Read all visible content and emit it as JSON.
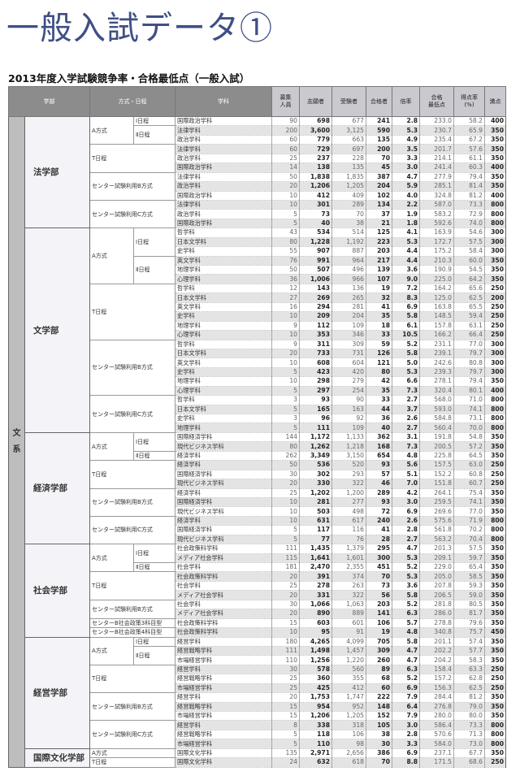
{
  "title": "一般入試データ①",
  "subtitle": "2013年度入学試験競争率・合格最低点（一般入試）",
  "headers": {
    "faculty": "学部",
    "method": "方式・日程",
    "subject": "学科",
    "quota": "募集\n人員",
    "applicants": "志願者",
    "examinees": "受験者",
    "passed": "合格者",
    "ratio": "倍率",
    "min_score": "合格\n最低点",
    "score_rate": "得点率\n(%)",
    "full_score": "満点"
  },
  "category": "文系",
  "departments": [
    {
      "name": "法学部",
      "methods": [
        {
          "method": "A方式",
          "schedules": [
            {
              "schedule": "Ⅰ日程",
              "rows": [
                [
                  "国際政治学科",
                  "90",
                  "698",
                  "677",
                  "241",
                  "2.8",
                  "233.0",
                  "58.2",
                  "400"
                ]
              ]
            },
            {
              "schedule": "Ⅱ日程",
              "rows": [
                [
                  "法律学科",
                  "200",
                  "3,600",
                  "3,125",
                  "590",
                  "5.3",
                  "230.7",
                  "65.9",
                  "350"
                ],
                [
                  "政治学科",
                  "60",
                  "779",
                  "663",
                  "135",
                  "4.9",
                  "235.4",
                  "67.2",
                  "350"
                ]
              ]
            }
          ]
        },
        {
          "method": "T日程",
          "rows": [
            [
              "法律学科",
              "60",
              "729",
              "697",
              "200",
              "3.5",
              "201.7",
              "57.6",
              "350"
            ],
            [
              "政治学科",
              "25",
              "237",
              "228",
              "70",
              "3.3",
              "214.1",
              "61.1",
              "350"
            ],
            [
              "国際政治学科",
              "14",
              "138",
              "135",
              "45",
              "3.0",
              "241.4",
              "60.3",
              "400"
            ]
          ]
        },
        {
          "method": "センター試験利用B方式",
          "rows": [
            [
              "法律学科",
              "50",
              "1,838",
              "1,835",
              "387",
              "4.7",
              "277.9",
              "79.4",
              "350"
            ],
            [
              "政治学科",
              "20",
              "1,206",
              "1,205",
              "204",
              "5.9",
              "285.1",
              "81.4",
              "350"
            ],
            [
              "国際政治学科",
              "10",
              "412",
              "409",
              "102",
              "4.0",
              "324.8",
              "81.2",
              "400"
            ]
          ]
        },
        {
          "method": "センター試験利用C方式",
          "rows": [
            [
              "法律学科",
              "10",
              "301",
              "289",
              "134",
              "2.2",
              "587.0",
              "73.3",
              "800"
            ],
            [
              "政治学科",
              "5",
              "73",
              "70",
              "37",
              "1.9",
              "583.2",
              "72.9",
              "800"
            ],
            [
              "国際政治学科",
              "5",
              "40",
              "38",
              "21",
              "1.8",
              "592.6",
              "74.0",
              "800"
            ]
          ]
        }
      ]
    },
    {
      "name": "文学部",
      "methods": [
        {
          "method": "A方式",
          "schedules": [
            {
              "schedule": "Ⅰ日程",
              "rows": [
                [
                  "哲学科",
                  "43",
                  "534",
                  "514",
                  "125",
                  "4.1",
                  "163.9",
                  "54.6",
                  "300"
                ],
                [
                  "日本文学科",
                  "80",
                  "1,228",
                  "1,192",
                  "223",
                  "5.3",
                  "172.7",
                  "57.5",
                  "300"
                ],
                [
                  "史学科",
                  "55",
                  "907",
                  "887",
                  "203",
                  "4.4",
                  "175.2",
                  "58.4",
                  "300"
                ]
              ]
            },
            {
              "schedule": "Ⅱ日程",
              "rows": [
                [
                  "英文学科",
                  "76",
                  "991",
                  "964",
                  "217",
                  "4.4",
                  "210.3",
                  "60.0",
                  "350"
                ],
                [
                  "地理学科",
                  "50",
                  "507",
                  "496",
                  "139",
                  "3.6",
                  "190.9",
                  "54.5",
                  "350"
                ],
                [
                  "心理学科",
                  "36",
                  "1,006",
                  "966",
                  "107",
                  "9.0",
                  "225.0",
                  "64.2",
                  "350"
                ]
              ]
            }
          ]
        },
        {
          "method": "T日程",
          "rows": [
            [
              "哲学科",
              "12",
              "143",
              "136",
              "19",
              "7.2",
              "164.2",
              "65.6",
              "250"
            ],
            [
              "日本文学科",
              "27",
              "269",
              "265",
              "32",
              "8.3",
              "125.0",
              "62.5",
              "200"
            ],
            [
              "英文学科",
              "16",
              "294",
              "281",
              "41",
              "6.9",
              "163.8",
              "65.5",
              "250"
            ],
            [
              "史学科",
              "10",
              "209",
              "204",
              "35",
              "5.8",
              "148.5",
              "59.4",
              "250"
            ],
            [
              "地理学科",
              "9",
              "112",
              "109",
              "18",
              "6.1",
              "157.8",
              "63.1",
              "250"
            ],
            [
              "心理学科",
              "10",
              "353",
              "346",
              "33",
              "10.5",
              "166.2",
              "66.4",
              "250"
            ]
          ]
        },
        {
          "method": "センター試験利用B方式",
          "rows": [
            [
              "哲学科",
              "9",
              "311",
              "309",
              "59",
              "5.2",
              "231.1",
              "77.0",
              "300"
            ],
            [
              "日本文学科",
              "20",
              "733",
              "731",
              "126",
              "5.8",
              "239.1",
              "79.7",
              "300"
            ],
            [
              "英文学科",
              "10",
              "608",
              "604",
              "121",
              "5.0",
              "242.6",
              "80.8",
              "300"
            ],
            [
              "史学科",
              "5",
              "423",
              "420",
              "80",
              "5.3",
              "239.3",
              "79.7",
              "300"
            ],
            [
              "地理学科",
              "10",
              "298",
              "279",
              "42",
              "6.6",
              "278.1",
              "79.4",
              "350"
            ],
            [
              "心理学科",
              "5",
              "297",
              "254",
              "35",
              "7.3",
              "320.4",
              "80.1",
              "400"
            ]
          ]
        },
        {
          "method": "センター試験利用C方式",
          "rows": [
            [
              "哲学科",
              "3",
              "93",
              "90",
              "33",
              "2.7",
              "568.0",
              "71.0",
              "800"
            ],
            [
              "日本文学科",
              "5",
              "165",
              "163",
              "44",
              "3.7",
              "593.0",
              "74.1",
              "800"
            ],
            [
              "史学科",
              "3",
              "96",
              "92",
              "36",
              "2.6",
              "584.8",
              "73.1",
              "800"
            ],
            [
              "地理学科",
              "5",
              "111",
              "109",
              "40",
              "2.7",
              "560.4",
              "70.0",
              "800"
            ]
          ]
        }
      ]
    },
    {
      "name": "経済学部",
      "methods": [
        {
          "method": "A方式",
          "schedules": [
            {
              "schedule": "Ⅰ日程",
              "rows": [
                [
                  "国際経済学科",
                  "144",
                  "1,172",
                  "1,133",
                  "362",
                  "3.1",
                  "191.8",
                  "54.8",
                  "350"
                ],
                [
                  "現代ビジネス学科",
                  "80",
                  "1,262",
                  "1,218",
                  "168",
                  "7.3",
                  "200.5",
                  "57.2",
                  "350"
                ]
              ]
            },
            {
              "schedule": "Ⅱ日程",
              "rows": [
                [
                  "経済学科",
                  "262",
                  "3,349",
                  "3,150",
                  "654",
                  "4.8",
                  "225.8",
                  "64.5",
                  "350"
                ]
              ]
            }
          ]
        },
        {
          "method": "T日程",
          "rows": [
            [
              "経済学科",
              "50",
              "536",
              "520",
              "93",
              "5.6",
              "157.5",
              "63.0",
              "250"
            ],
            [
              "国際経済学科",
              "30",
              "302",
              "293",
              "57",
              "5.1",
              "152.2",
              "60.8",
              "250"
            ],
            [
              "現代ビジネス学科",
              "20",
              "330",
              "322",
              "46",
              "7.0",
              "151.8",
              "60.7",
              "250"
            ]
          ]
        },
        {
          "method": "センター試験利用B方式",
          "rows": [
            [
              "経済学科",
              "25",
              "1,202",
              "1,200",
              "289",
              "4.2",
              "264.1",
              "75.4",
              "350"
            ],
            [
              "国際経済学科",
              "10",
              "281",
              "277",
              "93",
              "3.0",
              "259.5",
              "74.1",
              "350"
            ],
            [
              "現代ビジネス学科",
              "10",
              "503",
              "498",
              "72",
              "6.9",
              "269.6",
              "77.0",
              "350"
            ]
          ]
        },
        {
          "method": "センター試験利用C方式",
          "rows": [
            [
              "経済学科",
              "10",
              "631",
              "617",
              "240",
              "2.6",
              "575.6",
              "71.9",
              "800"
            ],
            [
              "国際経済学科",
              "5",
              "117",
              "116",
              "41",
              "2.8",
              "561.8",
              "70.2",
              "800"
            ],
            [
              "現代ビジネス学科",
              "5",
              "77",
              "76",
              "28",
              "2.7",
              "563.2",
              "70.4",
              "800"
            ]
          ]
        }
      ]
    },
    {
      "name": "社会学部",
      "methods": [
        {
          "method": "A方式",
          "schedules": [
            {
              "schedule": "Ⅰ日程",
              "rows": [
                [
                  "社会政策科学科",
                  "111",
                  "1,435",
                  "1,379",
                  "295",
                  "4.7",
                  "201.3",
                  "57.5",
                  "350"
                ],
                [
                  "メディア社会学科",
                  "115",
                  "1,641",
                  "1,601",
                  "300",
                  "5.3",
                  "209.1",
                  "59.7",
                  "350"
                ]
              ]
            },
            {
              "schedule": "Ⅱ日程",
              "rows": [
                [
                  "社会学科",
                  "181",
                  "2,470",
                  "2,355",
                  "451",
                  "5.2",
                  "229.0",
                  "65.4",
                  "350"
                ]
              ]
            }
          ]
        },
        {
          "method": "T日程",
          "rows": [
            [
              "社会政策科学科",
              "20",
              "391",
              "374",
              "70",
              "5.3",
              "205.0",
              "58.5",
              "350"
            ],
            [
              "社会学科",
              "25",
              "278",
              "263",
              "73",
              "3.6",
              "207.8",
              "59.3",
              "350"
            ],
            [
              "メディア社会学科",
              "20",
              "331",
              "322",
              "56",
              "5.8",
              "206.5",
              "59.0",
              "350"
            ]
          ]
        },
        {
          "method": "センター試験利用B方式",
          "rows": [
            [
              "社会学科",
              "30",
              "1,066",
              "1,063",
              "203",
              "5.2",
              "281.8",
              "80.5",
              "350"
            ],
            [
              "メディア社会学科",
              "20",
              "890",
              "889",
              "141",
              "6.3",
              "286.0",
              "81.7",
              "350"
            ]
          ]
        },
        {
          "method": "センターB社会政策3科目型",
          "rows": [
            [
              "社会政策科学科",
              "15",
              "603",
              "601",
              "106",
              "5.7",
              "278.8",
              "79.6",
              "350"
            ]
          ]
        },
        {
          "method": "センターB社会政策4科目型",
          "rows": [
            [
              "社会政策科学科",
              "10",
              "95",
              "91",
              "19",
              "4.8",
              "340.8",
              "75.7",
              "450"
            ]
          ]
        }
      ]
    },
    {
      "name": "経営学部",
      "methods": [
        {
          "method": "A方式",
          "schedules": [
            {
              "schedule": "Ⅰ日程",
              "rows": [
                [
                  "経営学科",
                  "180",
                  "4,265",
                  "4,099",
                  "705",
                  "5.8",
                  "201.1",
                  "57.4",
                  "350"
                ]
              ]
            },
            {
              "schedule": "Ⅱ日程",
              "rows": [
                [
                  "経営戦略学科",
                  "111",
                  "1,498",
                  "1,457",
                  "309",
                  "4.7",
                  "202.2",
                  "57.7",
                  "350"
                ],
                [
                  "市場経営学科",
                  "110",
                  "1,256",
                  "1,220",
                  "260",
                  "4.7",
                  "204.2",
                  "58.3",
                  "350"
                ]
              ]
            }
          ]
        },
        {
          "method": "T日程",
          "rows": [
            [
              "経営学科",
              "30",
              "578",
              "560",
              "89",
              "6.3",
              "158.4",
              "63.3",
              "250"
            ],
            [
              "経営戦略学科",
              "25",
              "360",
              "355",
              "68",
              "5.2",
              "157.2",
              "62.8",
              "250"
            ],
            [
              "市場経営学科",
              "25",
              "425",
              "412",
              "60",
              "6.9",
              "156.3",
              "62.5",
              "250"
            ]
          ]
        },
        {
          "method": "センター試験利用B方式",
          "rows": [
            [
              "経営学科",
              "20",
              "1,753",
              "1,747",
              "222",
              "7.9",
              "284.4",
              "81.2",
              "350"
            ],
            [
              "経営戦略学科",
              "15",
              "954",
              "952",
              "148",
              "6.4",
              "276.8",
              "79.0",
              "350"
            ],
            [
              "市場経営学科",
              "15",
              "1,206",
              "1,205",
              "152",
              "7.9",
              "280.0",
              "80.0",
              "350"
            ]
          ]
        },
        {
          "method": "センター試験利用C方式",
          "rows": [
            [
              "経営学科",
              "8",
              "338",
              "318",
              "105",
              "3.0",
              "586.4",
              "73.3",
              "800"
            ],
            [
              "経営戦略学科",
              "5",
              "118",
              "106",
              "38",
              "2.8",
              "570.6",
              "71.3",
              "800"
            ],
            [
              "市場経営学科",
              "5",
              "110",
              "98",
              "30",
              "3.3",
              "584.0",
              "73.0",
              "800"
            ]
          ]
        }
      ]
    },
    {
      "name": "国際文化学部",
      "methods": [
        {
          "method": "A方式",
          "rows": [
            [
              "国際文化学科",
              "135",
              "2,971",
              "2,656",
              "386",
              "6.9",
              "237.1",
              "67.7",
              "350"
            ]
          ]
        },
        {
          "method": "T日程",
          "rows": [
            [
              "国際文化学科",
              "24",
              "632",
              "618",
              "70",
              "8.8",
              "171.5",
              "68.6",
              "250"
            ]
          ]
        }
      ]
    }
  ]
}
